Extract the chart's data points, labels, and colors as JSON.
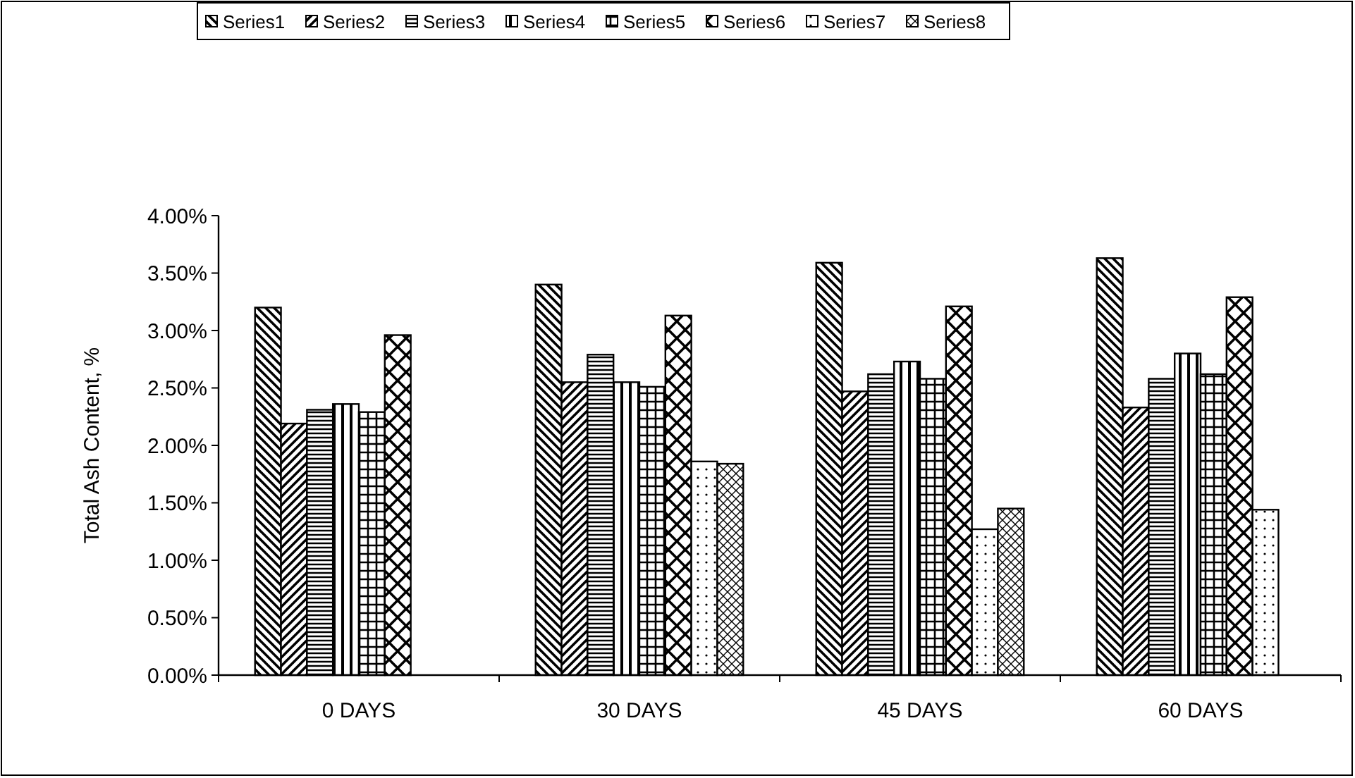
{
  "chart_data": {
    "type": "bar",
    "ylabel": "Total Ash Content, %",
    "categories": [
      "0 DAYS",
      "30 DAYS",
      "45 DAYS",
      "60 DAYS"
    ],
    "series": [
      {
        "name": "Series1",
        "color": "#000000",
        "values": [
          3.2,
          3.4,
          3.59,
          3.63
        ]
      },
      {
        "name": "Series2",
        "color": "#000000",
        "values": [
          2.19,
          2.55,
          2.47,
          2.33
        ]
      },
      {
        "name": "Series3",
        "color": "#000000",
        "values": [
          2.31,
          2.79,
          2.62,
          2.58
        ]
      },
      {
        "name": "Series4",
        "color": "#000000",
        "values": [
          2.36,
          2.55,
          2.73,
          2.8
        ]
      },
      {
        "name": "Series5",
        "color": "#000000",
        "values": [
          2.29,
          2.51,
          2.58,
          2.62
        ]
      },
      {
        "name": "Series6",
        "color": "#000000",
        "values": [
          2.96,
          3.13,
          3.21,
          3.29
        ]
      },
      {
        "name": "Series7",
        "color": "#000000",
        "values": [
          null,
          1.86,
          1.27,
          1.44
        ]
      },
      {
        "name": "Series8",
        "color": "#000000",
        "values": [
          null,
          1.84,
          1.45,
          null
        ]
      }
    ],
    "ylim": [
      0,
      4
    ],
    "yticks": [
      {
        "value": 0,
        "label": "0.00%"
      },
      {
        "value": 0.5,
        "label": "0.50%"
      },
      {
        "value": 1,
        "label": "1.00%"
      },
      {
        "value": 1.5,
        "label": "1.50%"
      },
      {
        "value": 2,
        "label": "2.00%"
      },
      {
        "value": 2.5,
        "label": "2.50%"
      },
      {
        "value": 3,
        "label": "3.00%"
      },
      {
        "value": 3.5,
        "label": "3.50%"
      },
      {
        "value": 4,
        "label": "4.00%"
      }
    ],
    "grid": false,
    "legend": "top"
  }
}
